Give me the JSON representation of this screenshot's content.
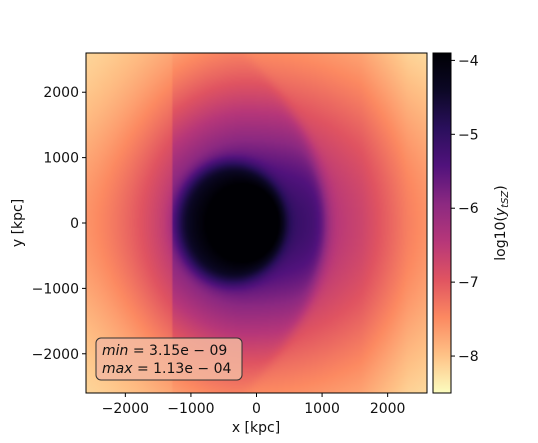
{
  "chart_data": {
    "type": "heatmap",
    "xlabel": "x [kpc]",
    "ylabel": "y [kpc]",
    "xlim": [
      -2600,
      2600
    ],
    "ylim": [
      -2600,
      2600
    ],
    "x_ticks": [
      -2000,
      -1000,
      0,
      1000,
      2000
    ],
    "x_tick_labels": [
      "−2000",
      "−1000",
      "0",
      "1000",
      "2000"
    ],
    "y_ticks": [
      -2000,
      -1000,
      0,
      1000,
      2000
    ],
    "y_tick_labels": [
      "−2000",
      "−1000",
      "0",
      "1000",
      "2000"
    ],
    "colorbar": {
      "label_prefix": "log10(",
      "label_var": "y",
      "label_sub": "tSZ",
      "label_suffix": ")",
      "range": [
        -8.5,
        -3.9
      ],
      "ticks": [
        -4,
        -5,
        -6,
        -7,
        -8
      ],
      "tick_labels": [
        "−4",
        "−5",
        "−6",
        "−7",
        "−8"
      ],
      "colormap": "magma"
    },
    "annotation": {
      "min_label": "min",
      "min_value": " = 3.15e − 09",
      "max_label": "max",
      "max_value": " = 1.13e − 04"
    },
    "features": {
      "core_center": [
        -150,
        0
      ],
      "core_log10_y": -4.0,
      "background_log10_y": -8.3
    }
  },
  "colors": {
    "magma_stops": [
      "#fcfdbf",
      "#fec287",
      "#fc8961",
      "#e05461",
      "#b73779",
      "#8c2981",
      "#51127c",
      "#2a0f5c",
      "#0c0826",
      "#000004"
    ]
  }
}
